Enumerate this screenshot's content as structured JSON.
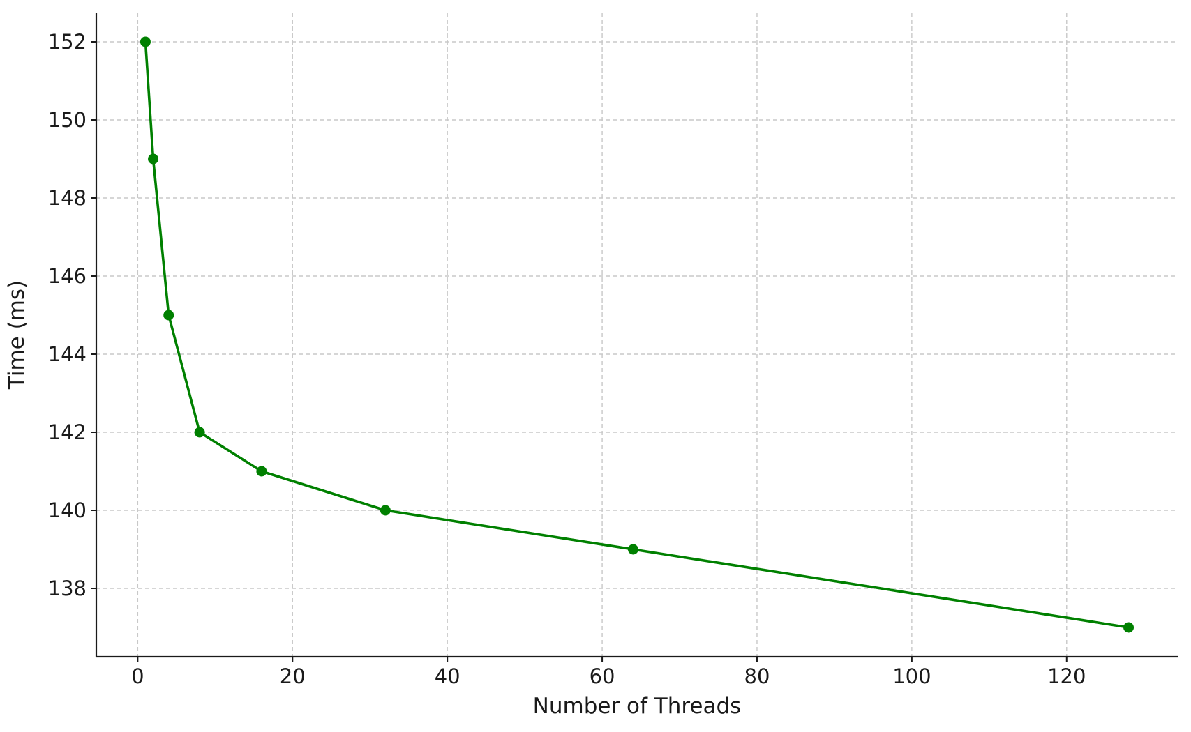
{
  "chart_data": {
    "type": "line",
    "title": "",
    "xlabel": "Number of Threads",
    "ylabel": "Time (ms)",
    "x": [
      1,
      2,
      4,
      8,
      16,
      32,
      64,
      128
    ],
    "series": [
      {
        "values": [
          152,
          149,
          145,
          142,
          141,
          140,
          139,
          137
        ],
        "color": "#008000",
        "marker": "circle"
      }
    ],
    "xlim": [
      -5.35,
      134.35
    ],
    "ylim": [
      136.25,
      152.75
    ],
    "xticks": [
      0,
      20,
      40,
      60,
      80,
      100,
      120
    ],
    "yticks": [
      138,
      140,
      142,
      144,
      146,
      148,
      150,
      152
    ],
    "grid": true,
    "legend": "none"
  }
}
